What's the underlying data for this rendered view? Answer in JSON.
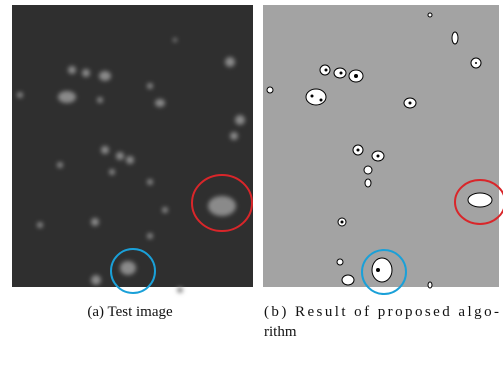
{
  "figure": {
    "panels": [
      {
        "caption": [
          "(a) Test image"
        ]
      },
      {
        "caption": [
          "(b) Result of proposed algo-",
          "rithm"
        ]
      }
    ]
  }
}
